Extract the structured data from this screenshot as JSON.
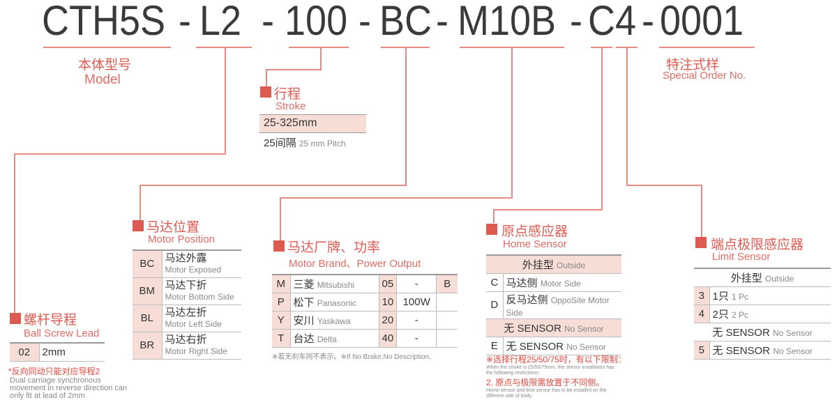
{
  "part_number": {
    "segments": [
      "CTH5S",
      "L2",
      "100",
      "BC",
      "M10B",
      "C4",
      "0001"
    ],
    "separator": "-"
  },
  "model": {
    "cn": "本体型号",
    "en": "Model"
  },
  "special": {
    "cn": "特注式样",
    "en": "Special Order No."
  },
  "stroke": {
    "cn": "行程",
    "en": "Stroke",
    "range": "25-325mm",
    "pitch_cn": "25间隔",
    "pitch_en": "25 mm Pitch"
  },
  "motor_position": {
    "cn": "马达位置",
    "en": "Motor Position",
    "rows": [
      {
        "code": "BC",
        "cn": "马达外露",
        "en": "Motor Exposed"
      },
      {
        "code": "BM",
        "cn": "马达下折",
        "en": "Motor Bottom Side"
      },
      {
        "code": "BL",
        "cn": "马达左折",
        "en": "Motor Left Side"
      },
      {
        "code": "BR",
        "cn": "马达右折",
        "en": "Motor Right Side"
      }
    ]
  },
  "motor_brand": {
    "cn": "马达厂牌、功率",
    "en": "Motor Brand、Power Output",
    "brake": "B",
    "rows": [
      {
        "code": "M",
        "cn": "三菱",
        "en": "Mitsubishi",
        "pcode": "05",
        "power": "-"
      },
      {
        "code": "P",
        "cn": "松下",
        "en": "Panasonic",
        "pcode": "10",
        "power": "100W"
      },
      {
        "code": "Y",
        "cn": "安川",
        "en": "Yaskawa",
        "pcode": "20",
        "power": "-"
      },
      {
        "code": "T",
        "cn": "台达",
        "en": "Delta",
        "pcode": "40",
        "power": "-"
      }
    ],
    "note": "※若无刹车则不表示。※If No Brake,No Description."
  },
  "ball_screw": {
    "cn": "螺杆导程",
    "en": "Ball Screw Lead",
    "code": "02",
    "value": "2mm",
    "note_cn": "*反向同动只能对应导程2",
    "note_en": [
      "Dual carriage synchronous",
      "movement in reverse direction can",
      "only fit at lead of 2mm"
    ]
  },
  "home_sensor": {
    "cn": "原点感应器",
    "en": "Home Sensor",
    "outside_cn": "外挂型",
    "outside_en": "Outside",
    "rows": [
      {
        "code": "C",
        "cn": "马达侧",
        "en": "Motor Side"
      },
      {
        "code": "D",
        "cn": "反马达侧",
        "en": "OppoSite Motor Side"
      }
    ],
    "none_cn": "无 SENSOR",
    "none_en": "No Sensor",
    "e_code": "E",
    "e_cn": "无 SENSOR",
    "e_en": "No Sensor",
    "notes": [
      "※选择行程25/50/75时，有以下限制：",
      "When the stroke is 25/50/75mm, the sensor installation has",
      "the following restrictions:",
      "2. 原点与极限需放置于不同侧。",
      "Home sensor and limit sensor has to be installed on the",
      "different side of body."
    ]
  },
  "limit_sensor": {
    "cn": "端点极限感应器",
    "en": "Limit Sensor",
    "outside_cn": "外挂型",
    "outside_en": "Outside",
    "rows": [
      {
        "code": "3",
        "cn": "1只",
        "en": "1 Pc"
      },
      {
        "code": "4",
        "cn": "2只",
        "en": "2 Pc"
      }
    ],
    "none_cn": "无 SENSOR",
    "none_en": "No Sensor",
    "five_code": "5",
    "five_cn": "无 SENSOR",
    "five_en": "No Sensor"
  },
  "colors": {
    "accent": "#dd5a50",
    "cell_bg": "#f6ddd5",
    "line": "#e88a84"
  }
}
